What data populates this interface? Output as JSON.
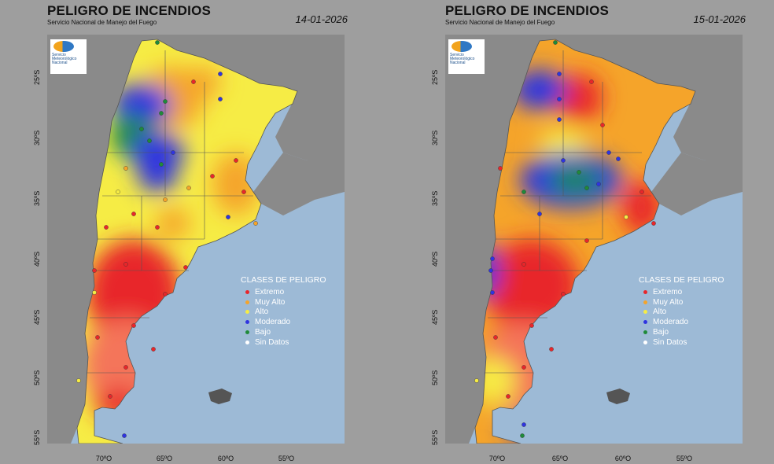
{
  "colors": {
    "extremo": "#e8262a",
    "muy_alto": "#f5a42a",
    "alto": "#f6ec45",
    "moderado": "#2f34e0",
    "bajo": "#1f8a3a",
    "sin_datos": "#ffffff",
    "ocean": "#9dbad6",
    "land_gray": "#8a8a8a"
  },
  "maps": [
    {
      "title": "PELIGRO DE INCENDIOS",
      "subtitle": "Servicio Nacional de Manejo del Fuego",
      "date": "14-01-2026",
      "logo_text": [
        "Servicio",
        "Meteorológico",
        "Nacional"
      ],
      "legend": {
        "title": "CLASES DE PELIGRO",
        "items": [
          {
            "label": "Extremo",
            "color": "#e8262a"
          },
          {
            "label": "Muy Alto",
            "color": "#f5a42a"
          },
          {
            "label": "Alto",
            "color": "#f6ec45"
          },
          {
            "label": "Moderado",
            "color": "#2f34e0"
          },
          {
            "label": "Bajo",
            "color": "#1f8a3a"
          },
          {
            "label": "Sin Datos",
            "color": "#ffffff"
          }
        ]
      },
      "lat_labels": [
        "25ºS",
        "30ºS",
        "35ºS",
        "40ºS",
        "45ºS",
        "50ºS",
        "55ºS"
      ],
      "lon_labels": [
        "70ºO",
        "65ºO",
        "60ºO",
        "55ºO"
      ]
    },
    {
      "title": "PELIGRO DE INCENDIOS",
      "subtitle": "Servicio Nacional de Manejo del Fuego",
      "date": "15-01-2026",
      "logo_text": [
        "Servicio",
        "Meteorológico",
        "Nacional"
      ],
      "legend": {
        "title": "CLASES DE PELIGRO",
        "items": [
          {
            "label": "Extremo",
            "color": "#e8262a"
          },
          {
            "label": "Muy Alto",
            "color": "#f5a42a"
          },
          {
            "label": "Alto",
            "color": "#f6ec45"
          },
          {
            "label": "Moderado",
            "color": "#2f34e0"
          },
          {
            "label": "Bajo",
            "color": "#1f8a3a"
          },
          {
            "label": "Sin Datos",
            "color": "#ffffff"
          }
        ]
      },
      "lat_labels": [
        "25ºS",
        "30ºS",
        "35ºS",
        "40ºS",
        "45ºS",
        "50ºS",
        "55ºS"
      ],
      "lon_labels": [
        "70ºO",
        "65ºO",
        "60ºO",
        "55ºO"
      ]
    }
  ]
}
